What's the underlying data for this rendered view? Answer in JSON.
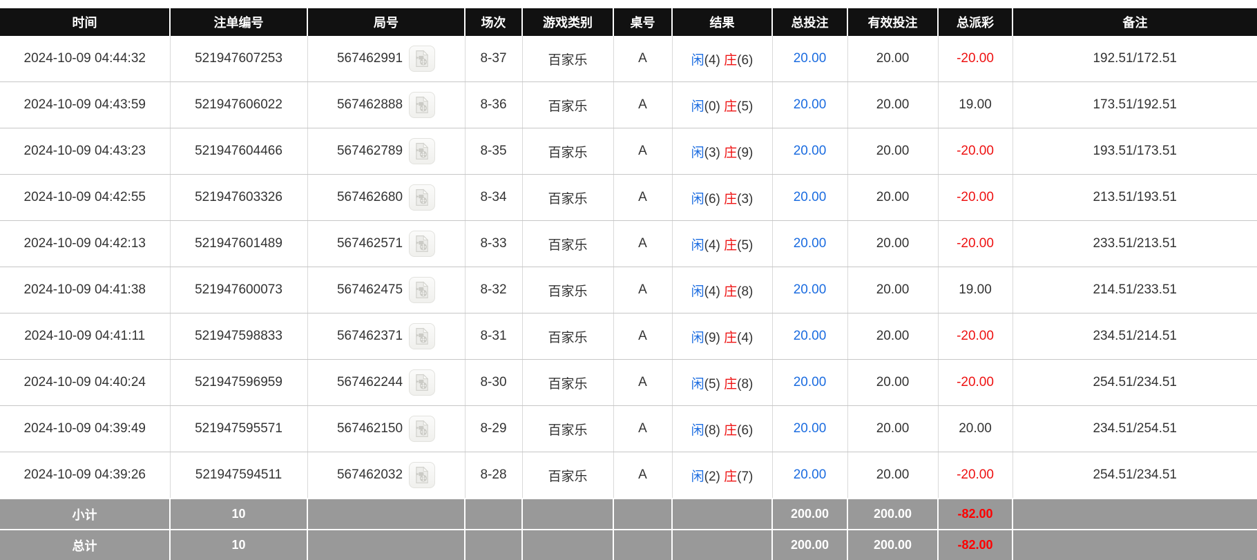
{
  "colors": {
    "header_bg": "#111111",
    "summary_bg": "#999999",
    "player_blue": "#1b6ce0",
    "banker_red": "#ee1111",
    "negative_red": "#ff0000",
    "body_text": "#333333"
  },
  "icons": {
    "round_video": "video-file-icon"
  },
  "table": {
    "columns": [
      {
        "key": "time",
        "label": "时间"
      },
      {
        "key": "bet_id",
        "label": "注单编号"
      },
      {
        "key": "round_id",
        "label": "局号"
      },
      {
        "key": "session",
        "label": "场次"
      },
      {
        "key": "game_type",
        "label": "游戏类别"
      },
      {
        "key": "table_no",
        "label": "桌号"
      },
      {
        "key": "result",
        "label": "结果"
      },
      {
        "key": "total_bet",
        "label": "总投注"
      },
      {
        "key": "valid_bet",
        "label": "有效投注"
      },
      {
        "key": "payout",
        "label": "总派彩"
      },
      {
        "key": "remark",
        "label": "备注"
      }
    ],
    "rows": [
      {
        "time": "2024-10-09 04:44:32",
        "bet_id": "521947607253",
        "round_id": "567462991",
        "session": "8-37",
        "game_type": "百家乐",
        "table_no": "A",
        "result": {
          "player": "闲",
          "player_score": "(4)",
          "banker": "庄",
          "banker_score": "(6)"
        },
        "total_bet": "20.00",
        "valid_bet": "20.00",
        "payout": "-20.00",
        "remark": "192.51/172.51"
      },
      {
        "time": "2024-10-09 04:43:59",
        "bet_id": "521947606022",
        "round_id": "567462888",
        "session": "8-36",
        "game_type": "百家乐",
        "table_no": "A",
        "result": {
          "player": "闲",
          "player_score": "(0)",
          "banker": "庄",
          "banker_score": "(5)"
        },
        "total_bet": "20.00",
        "valid_bet": "20.00",
        "payout": "19.00",
        "remark": "173.51/192.51"
      },
      {
        "time": "2024-10-09 04:43:23",
        "bet_id": "521947604466",
        "round_id": "567462789",
        "session": "8-35",
        "game_type": "百家乐",
        "table_no": "A",
        "result": {
          "player": "闲",
          "player_score": "(3)",
          "banker": "庄",
          "banker_score": "(9)"
        },
        "total_bet": "20.00",
        "valid_bet": "20.00",
        "payout": "-20.00",
        "remark": "193.51/173.51"
      },
      {
        "time": "2024-10-09 04:42:55",
        "bet_id": "521947603326",
        "round_id": "567462680",
        "session": "8-34",
        "game_type": "百家乐",
        "table_no": "A",
        "result": {
          "player": "闲",
          "player_score": "(6)",
          "banker": "庄",
          "banker_score": "(3)"
        },
        "total_bet": "20.00",
        "valid_bet": "20.00",
        "payout": "-20.00",
        "remark": "213.51/193.51"
      },
      {
        "time": "2024-10-09 04:42:13",
        "bet_id": "521947601489",
        "round_id": "567462571",
        "session": "8-33",
        "game_type": "百家乐",
        "table_no": "A",
        "result": {
          "player": "闲",
          "player_score": "(4)",
          "banker": "庄",
          "banker_score": "(5)"
        },
        "total_bet": "20.00",
        "valid_bet": "20.00",
        "payout": "-20.00",
        "remark": "233.51/213.51"
      },
      {
        "time": "2024-10-09 04:41:38",
        "bet_id": "521947600073",
        "round_id": "567462475",
        "session": "8-32",
        "game_type": "百家乐",
        "table_no": "A",
        "result": {
          "player": "闲",
          "player_score": "(4)",
          "banker": "庄",
          "banker_score": "(8)"
        },
        "total_bet": "20.00",
        "valid_bet": "20.00",
        "payout": "19.00",
        "remark": "214.51/233.51"
      },
      {
        "time": "2024-10-09 04:41:11",
        "bet_id": "521947598833",
        "round_id": "567462371",
        "session": "8-31",
        "game_type": "百家乐",
        "table_no": "A",
        "result": {
          "player": "闲",
          "player_score": "(9)",
          "banker": "庄",
          "banker_score": "(4)"
        },
        "total_bet": "20.00",
        "valid_bet": "20.00",
        "payout": "-20.00",
        "remark": "234.51/214.51"
      },
      {
        "time": "2024-10-09 04:40:24",
        "bet_id": "521947596959",
        "round_id": "567462244",
        "session": "8-30",
        "game_type": "百家乐",
        "table_no": "A",
        "result": {
          "player": "闲",
          "player_score": "(5)",
          "banker": "庄",
          "banker_score": "(8)"
        },
        "total_bet": "20.00",
        "valid_bet": "20.00",
        "payout": "-20.00",
        "remark": "254.51/234.51"
      },
      {
        "time": "2024-10-09 04:39:49",
        "bet_id": "521947595571",
        "round_id": "567462150",
        "session": "8-29",
        "game_type": "百家乐",
        "table_no": "A",
        "result": {
          "player": "闲",
          "player_score": "(8)",
          "banker": "庄",
          "banker_score": "(6)"
        },
        "total_bet": "20.00",
        "valid_bet": "20.00",
        "payout": "20.00",
        "remark": "234.51/254.51"
      },
      {
        "time": "2024-10-09 04:39:26",
        "bet_id": "521947594511",
        "round_id": "567462032",
        "session": "8-28",
        "game_type": "百家乐",
        "table_no": "A",
        "result": {
          "player": "闲",
          "player_score": "(2)",
          "banker": "庄",
          "banker_score": "(7)"
        },
        "total_bet": "20.00",
        "valid_bet": "20.00",
        "payout": "-20.00",
        "remark": "254.51/234.51"
      }
    ],
    "summary_rows": [
      {
        "label": "小计",
        "count": "10",
        "total_bet": "200.00",
        "valid_bet": "200.00",
        "payout": "-82.00"
      },
      {
        "label": "总计",
        "count": "10",
        "total_bet": "200.00",
        "valid_bet": "200.00",
        "payout": "-82.00"
      }
    ]
  }
}
